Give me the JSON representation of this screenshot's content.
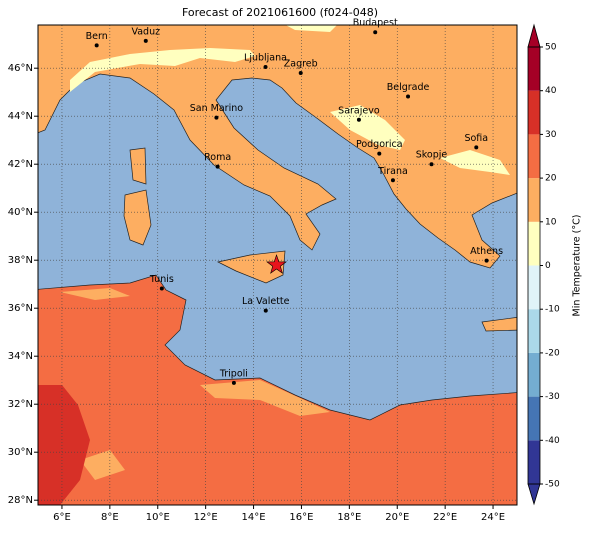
{
  "title": "Forecast of 2021061600 (f024-048)",
  "map": {
    "lon_range": [
      5,
      25
    ],
    "lat_range": [
      27.8,
      47.8
    ],
    "sea_color": "#8fb3d9",
    "grid": true,
    "xticks": [
      {
        "value": 6,
        "label": "6°E"
      },
      {
        "value": 8,
        "label": "8°E"
      },
      {
        "value": 10,
        "label": "10°E"
      },
      {
        "value": 12,
        "label": "12°E"
      },
      {
        "value": 14,
        "label": "14°E"
      },
      {
        "value": 16,
        "label": "16°E"
      },
      {
        "value": 18,
        "label": "18°E"
      },
      {
        "value": 20,
        "label": "20°E"
      },
      {
        "value": 22,
        "label": "22°E"
      },
      {
        "value": 24,
        "label": "24°E"
      }
    ],
    "yticks": [
      {
        "value": 28,
        "label": "28°N"
      },
      {
        "value": 30,
        "label": "30°N"
      },
      {
        "value": 32,
        "label": "32°N"
      },
      {
        "value": 34,
        "label": "34°N"
      },
      {
        "value": 36,
        "label": "36°N"
      },
      {
        "value": 38,
        "label": "38°N"
      },
      {
        "value": 40,
        "label": "40°N"
      },
      {
        "value": 42,
        "label": "42°N"
      },
      {
        "value": 44,
        "label": "44°N"
      },
      {
        "value": 46,
        "label": "46°N"
      }
    ]
  },
  "cities": [
    {
      "name": "Bern",
      "lon": 7.45,
      "lat": 46.95
    },
    {
      "name": "Vaduz",
      "lon": 9.5,
      "lat": 47.14
    },
    {
      "name": "Budapest",
      "lon": 19.08,
      "lat": 47.5
    },
    {
      "name": "Ljubljana",
      "lon": 14.5,
      "lat": 46.05
    },
    {
      "name": "Zagreb",
      "lon": 15.97,
      "lat": 45.8
    },
    {
      "name": "Belgrade",
      "lon": 20.45,
      "lat": 44.82
    },
    {
      "name": "San Marino",
      "lon": 12.45,
      "lat": 43.94
    },
    {
      "name": "Sarajevo",
      "lon": 18.4,
      "lat": 43.85
    },
    {
      "name": "Sofia",
      "lon": 23.3,
      "lat": 42.7
    },
    {
      "name": "Podgorica",
      "lon": 19.25,
      "lat": 42.44
    },
    {
      "name": "Skopje",
      "lon": 21.43,
      "lat": 42.0
    },
    {
      "name": "Roma",
      "lon": 12.5,
      "lat": 41.9
    },
    {
      "name": "Tirana",
      "lon": 19.82,
      "lat": 41.33
    },
    {
      "name": "Athens",
      "lon": 23.73,
      "lat": 37.98
    },
    {
      "name": "Tunis",
      "lon": 10.17,
      "lat": 36.82
    },
    {
      "name": "La Valette",
      "lon": 14.51,
      "lat": 35.9
    },
    {
      "name": "Tripoli",
      "lon": 13.18,
      "lat": 32.89
    }
  ],
  "marker": {
    "lon": 14.96,
    "lat": 37.8,
    "color": "#e8141c"
  },
  "colorbar": {
    "label": "Min Temperature (°C)",
    "ticks": [
      -50,
      -40,
      -30,
      -20,
      -10,
      0,
      10,
      20,
      30,
      40,
      50
    ],
    "colors": [
      "#313695",
      "#4575b4",
      "#74add1",
      "#abd9e9",
      "#e0f3f8",
      "#ffffbf",
      "#fdae61",
      "#f46d43",
      "#d73027",
      "#a50026"
    ]
  }
}
